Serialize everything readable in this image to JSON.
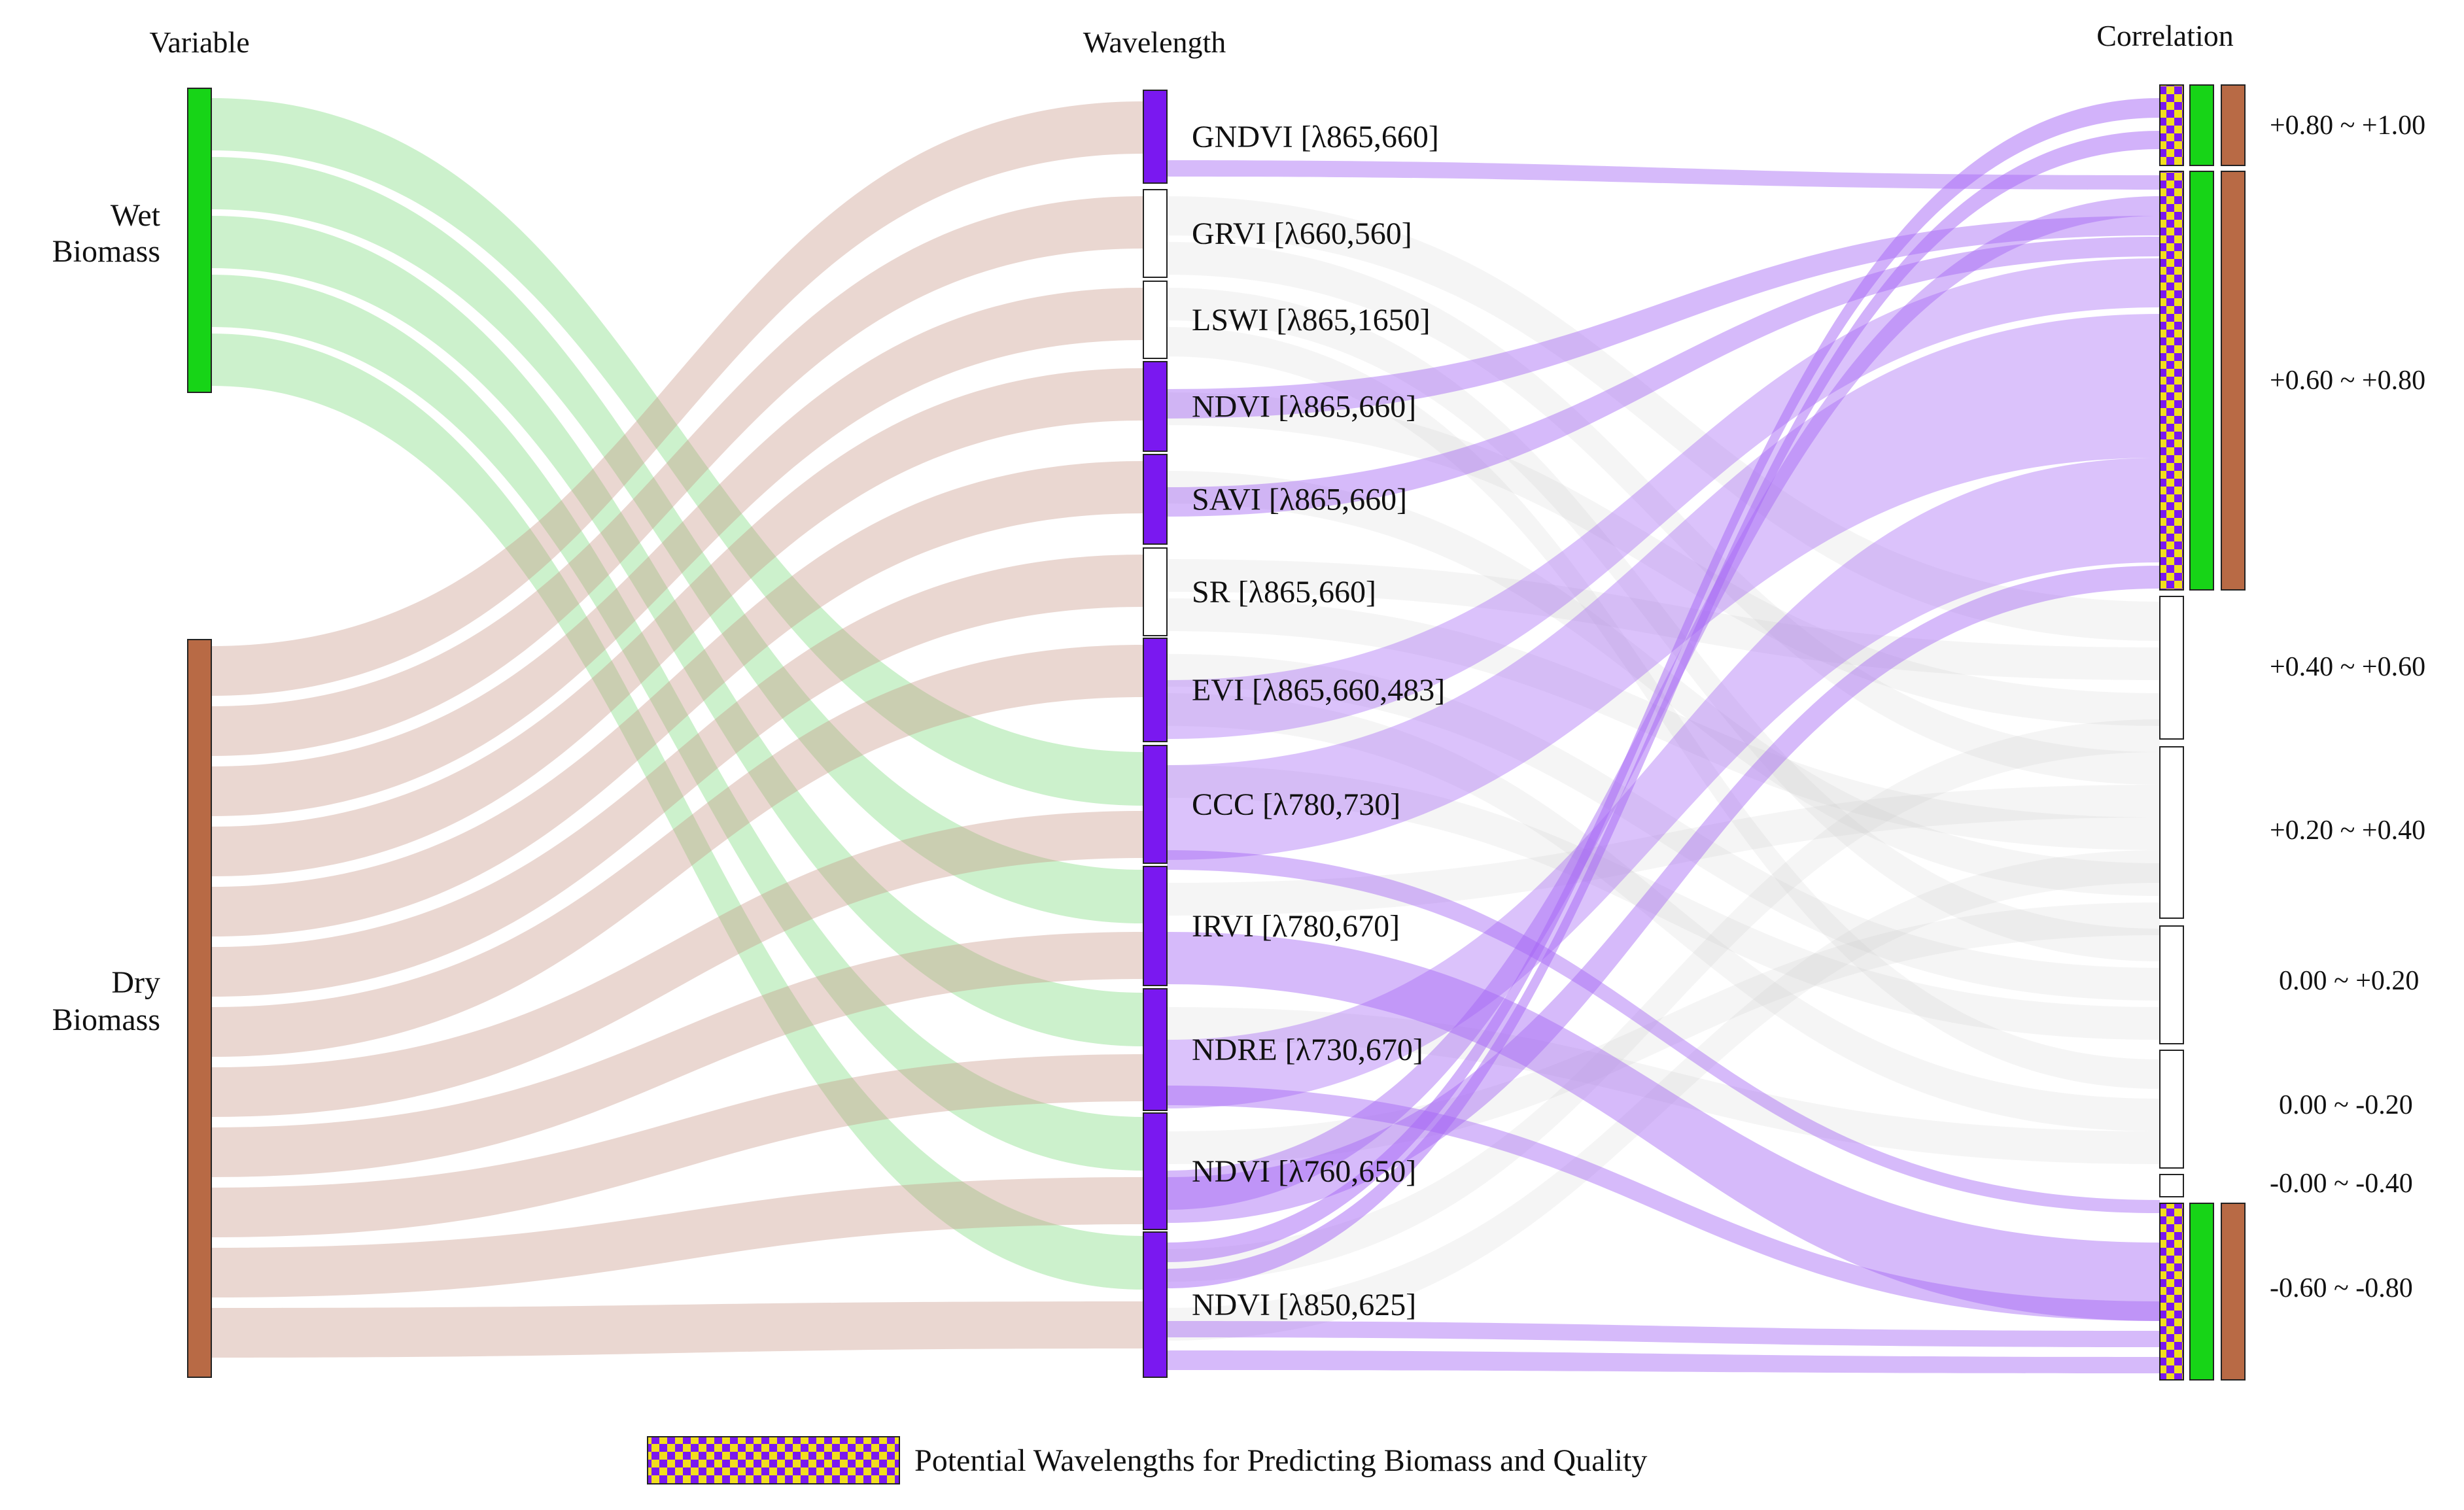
{
  "headers": {
    "variable": "Variable",
    "wavelength": "Wavelength",
    "correlation": "Correlation"
  },
  "variables": [
    {
      "id": "wet",
      "lines": [
        "Wet",
        "Biomass"
      ],
      "color": "#17d417"
    },
    {
      "id": "dry",
      "lines": [
        "Dry",
        "Biomass"
      ],
      "color": "#b86a45"
    }
  ],
  "wavelengths": [
    {
      "name": "GNDVI",
      "lambda": "[λ865,660]",
      "highlight": true
    },
    {
      "name": "GRVI",
      "lambda": "[λ660,560]",
      "highlight": false
    },
    {
      "name": "LSWI",
      "lambda": "[λ865,1650]",
      "highlight": false
    },
    {
      "name": "NDVI",
      "lambda": "[λ865,660]",
      "highlight": true
    },
    {
      "name": "SAVI",
      "lambda": "[λ865,660]",
      "highlight": true
    },
    {
      "name": "SR",
      "lambda": "[λ865,660]",
      "highlight": false
    },
    {
      "name": "EVI",
      "lambda": "[λ865,660,483]",
      "highlight": true
    },
    {
      "name": "CCC",
      "lambda": "[λ780,730]",
      "highlight": true
    },
    {
      "name": "IRVI",
      "lambda": "[λ780,670]",
      "highlight": true
    },
    {
      "name": "NDRE",
      "lambda": "[λ730,670]",
      "highlight": true
    },
    {
      "name": "NDVI",
      "lambda": "[λ760,650]",
      "highlight": true
    },
    {
      "name": "NDVI",
      "lambda": "[λ850,625]",
      "highlight": true
    }
  ],
  "correlation_ranges": [
    {
      "label": "+0.80 ~ +1.00",
      "potential": true
    },
    {
      "label": "+0.60 ~ +0.80",
      "potential": true
    },
    {
      "label": "+0.40 ~ +0.60",
      "potential": false
    },
    {
      "label": "+0.20 ~ +0.40",
      "potential": false
    },
    {
      "label": "0.00 ~ +0.20",
      "potential": false
    },
    {
      "label": "0.00 ~ -0.20",
      "potential": false
    },
    {
      "label": "-0.00 ~ -0.40",
      "potential": false
    },
    {
      "label": "-0.60 ~ -0.80",
      "potential": true
    }
  ],
  "legend": {
    "label": "Potential Wavelengths for Predicting Biomass and Quality"
  },
  "colors": {
    "wet": "#17d417",
    "dry": "#b86a45",
    "highlight": "#7a18f0",
    "wet_flow": "#5fd45f",
    "dry_flow": "#c99785",
    "purple_flow": "#a566f5",
    "grey_flow": "#c8c8c8",
    "checker_a": "#f2de1e",
    "checker_b": "#7a18f0"
  }
}
